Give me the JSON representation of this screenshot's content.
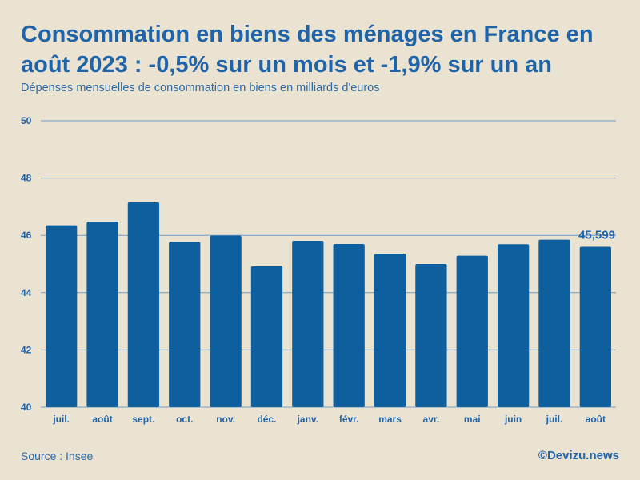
{
  "chart_data": {
    "type": "bar",
    "title": "Consommation en biens des ménages en France en août 2023 : -0,5% sur un mois et -1,9% sur un an",
    "subtitle": "Dépenses mensuelles de consommation en biens en milliards d'euros",
    "categories": [
      "juil.",
      "août",
      "sept.",
      "oct.",
      "nov.",
      "déc.",
      "janv.",
      "févr.",
      "mars",
      "avr.",
      "mai",
      "juin",
      "juil.",
      "août"
    ],
    "values": [
      46.35,
      46.48,
      47.15,
      45.77,
      45.99,
      44.92,
      45.81,
      45.7,
      45.36,
      45.0,
      45.29,
      45.69,
      45.85,
      45.599
    ],
    "data_labels": [
      {
        "index": 13,
        "text": "45,599"
      }
    ],
    "ylim": [
      40,
      50
    ],
    "yticks": [
      40,
      42,
      44,
      46,
      48,
      50
    ],
    "xlabel": "",
    "ylabel": "",
    "grid": true,
    "colors": {
      "bar": "#0d5f9e",
      "grid": "#6f9ec6",
      "text": "#1f63a8",
      "background": "#ebe3d2"
    }
  },
  "footer": {
    "source": "Source : Insee",
    "brand": "©Devizu.news"
  }
}
